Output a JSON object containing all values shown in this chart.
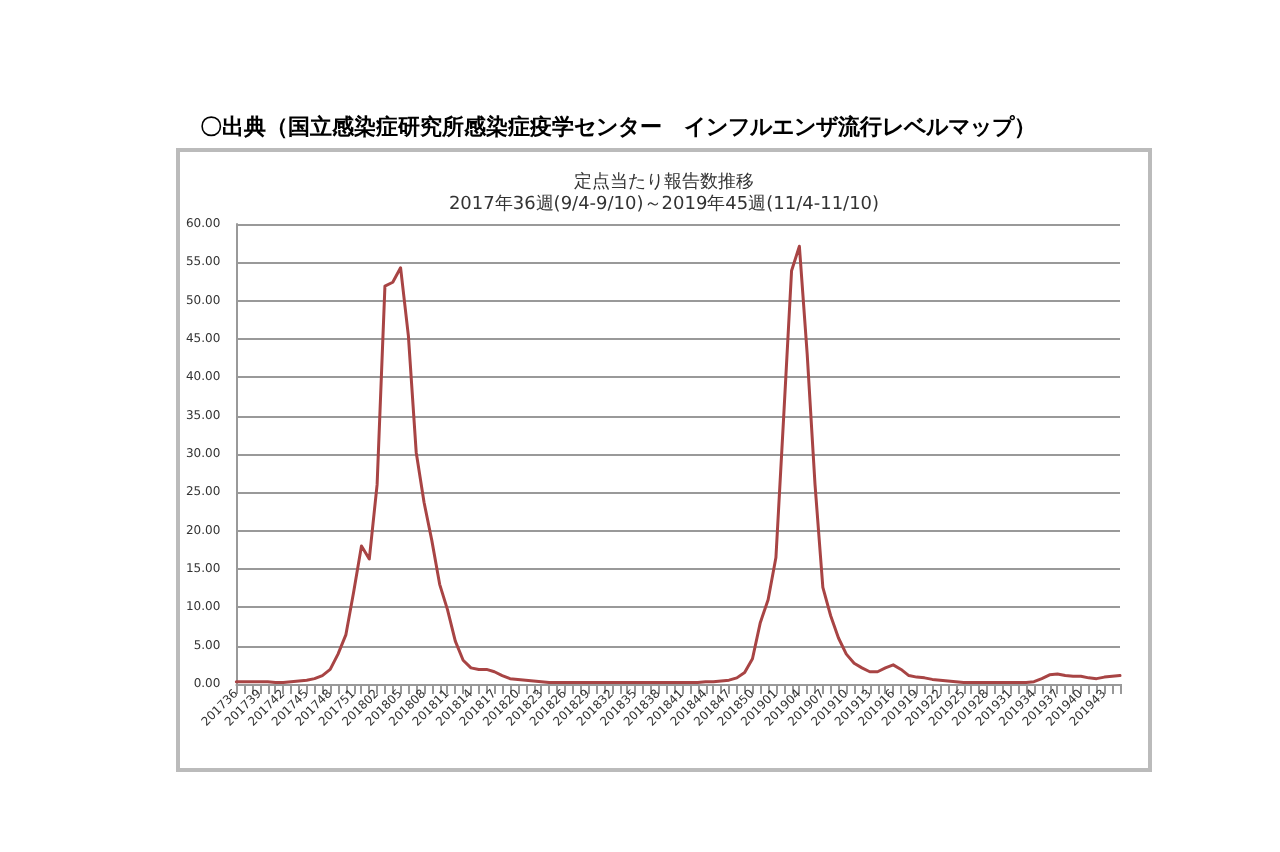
{
  "chart_data": {
    "type": "line",
    "title": "定点当たり報告数推移",
    "subtitle": "2017年36週(9/4-9/10)～2019年45週(11/4-11/10)",
    "annotations": [
      "〇出典（国立感染症研究所感染症疫学センター　インフルエンザ流行レベルマップ）"
    ],
    "categories": [
      "201736",
      null,
      null,
      "201739",
      null,
      null,
      "201742",
      null,
      null,
      "201745",
      null,
      null,
      "201748",
      null,
      null,
      "201751",
      null,
      null,
      "201802",
      null,
      null,
      "201805",
      null,
      null,
      "201808",
      null,
      null,
      "201811",
      null,
      null,
      "201814",
      null,
      null,
      "201817",
      null,
      null,
      "201820",
      null,
      null,
      "201823",
      null,
      null,
      "201826",
      null,
      null,
      "201829",
      null,
      null,
      "201832",
      null,
      null,
      "201835",
      null,
      null,
      "201838",
      null,
      null,
      "201841",
      null,
      null,
      "201844",
      null,
      null,
      "201847",
      null,
      null,
      "201850",
      null,
      null,
      "201901",
      null,
      null,
      "201904",
      null,
      null,
      "201907",
      null,
      null,
      "201910",
      null,
      null,
      "201913",
      null,
      null,
      "201916",
      null,
      null,
      "201919",
      null,
      null,
      "201922",
      null,
      null,
      "201925",
      null,
      null,
      "201928",
      null,
      null,
      "201931",
      null,
      null,
      "201934",
      null,
      null,
      "201937",
      null,
      null,
      "201940",
      null,
      null,
      "201943",
      null,
      null
    ],
    "series": [
      {
        "color": "#a84444",
        "values": [
          0.3,
          0.3,
          0.3,
          0.3,
          0.3,
          0.2,
          0.2,
          0.3,
          0.4,
          0.5,
          0.7,
          1.1,
          1.9,
          3.9,
          6.4,
          12.0,
          18.0,
          16.3,
          26.0,
          51.9,
          52.4,
          54.3,
          45.4,
          30.2,
          23.7,
          18.7,
          13.0,
          9.7,
          5.6,
          3.1,
          2.1,
          1.9,
          1.9,
          1.6,
          1.1,
          0.7,
          0.6,
          0.5,
          0.4,
          0.3,
          0.2,
          0.2,
          0.2,
          0.2,
          0.2,
          0.2,
          0.2,
          0.2,
          0.2,
          0.2,
          0.2,
          0.2,
          0.2,
          0.2,
          0.2,
          0.2,
          0.2,
          0.2,
          0.2,
          0.2,
          0.3,
          0.3,
          0.4,
          0.5,
          0.8,
          1.5,
          3.3,
          8.0,
          11.0,
          16.5,
          35.0,
          53.9,
          57.1,
          43.0,
          26.0,
          12.6,
          8.9,
          6.0,
          3.9,
          2.7,
          2.1,
          1.6,
          1.6,
          2.1,
          2.5,
          1.9,
          1.1,
          0.9,
          0.8,
          0.6,
          0.5,
          0.4,
          0.3,
          0.2,
          0.2,
          0.2,
          0.2,
          0.2,
          0.2,
          0.2,
          0.2,
          0.2,
          0.3,
          0.7,
          1.2,
          1.3,
          1.1,
          1.0,
          1.0,
          0.8,
          0.7,
          0.9,
          1.0,
          1.1
        ]
      }
    ],
    "ylim": [
      0,
      60
    ],
    "yticks": [
      {
        "value": 0,
        "label": "0.00"
      },
      {
        "value": 5,
        "label": "5.00"
      },
      {
        "value": 10,
        "label": "10.00"
      },
      {
        "value": 15,
        "label": "15.00"
      },
      {
        "value": 20,
        "label": "20.00"
      },
      {
        "value": 25,
        "label": "25.00"
      },
      {
        "value": 30,
        "label": "30.00"
      },
      {
        "value": 35,
        "label": "35.00"
      },
      {
        "value": 40,
        "label": "40.00"
      },
      {
        "value": 45,
        "label": "45.00"
      },
      {
        "value": 50,
        "label": "50.00"
      },
      {
        "value": 55,
        "label": "55.00"
      },
      {
        "value": 60,
        "label": "60.00"
      }
    ],
    "grid": "y",
    "marker": "none",
    "line_style": "solid"
  }
}
